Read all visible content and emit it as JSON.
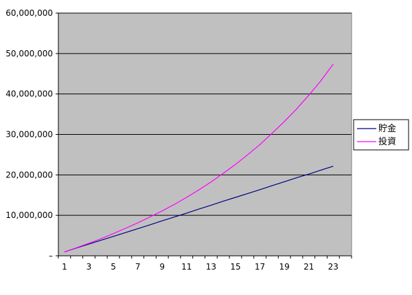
{
  "chart_data": {
    "type": "line",
    "title": "",
    "xlabel": "",
    "ylabel": "",
    "x": [
      1,
      2,
      3,
      4,
      5,
      6,
      7,
      8,
      9,
      10,
      11,
      12,
      13,
      14,
      15,
      16,
      17,
      18,
      19,
      20,
      21,
      22,
      23
    ],
    "x_tick_labels": [
      "1",
      "3",
      "5",
      "7",
      "9",
      "11",
      "13",
      "15",
      "17",
      "19",
      "21",
      "23"
    ],
    "ylim": [
      0,
      60000000
    ],
    "y_tick_labels": [
      "–",
      "10,000,000",
      "20,000,000",
      "30,000,000",
      "40,000,000",
      "50,000,000",
      "60,000,000"
    ],
    "grid": "horizontal",
    "legend_position": "right",
    "plot_background": "#c0c0c0",
    "series": [
      {
        "name": "貯金",
        "color": "#000080",
        "values": [
          960000,
          1950000,
          2900000,
          3850000,
          4800000,
          5750000,
          6700000,
          7650000,
          8650000,
          9600000,
          10550000,
          11550000,
          12500000,
          13500000,
          14450000,
          15400000,
          16350000,
          17350000,
          18300000,
          19300000,
          20200000,
          21200000,
          22150000
        ]
      },
      {
        "name": "投資",
        "color": "#ff00ff",
        "values": [
          960000,
          2000000,
          3100000,
          4250000,
          5500000,
          6800000,
          8150000,
          9600000,
          11100000,
          12700000,
          14450000,
          16300000,
          18250000,
          20400000,
          22600000,
          25000000,
          27500000,
          30300000,
          33200000,
          36300000,
          39700000,
          43300000,
          47400000
        ]
      }
    ]
  }
}
